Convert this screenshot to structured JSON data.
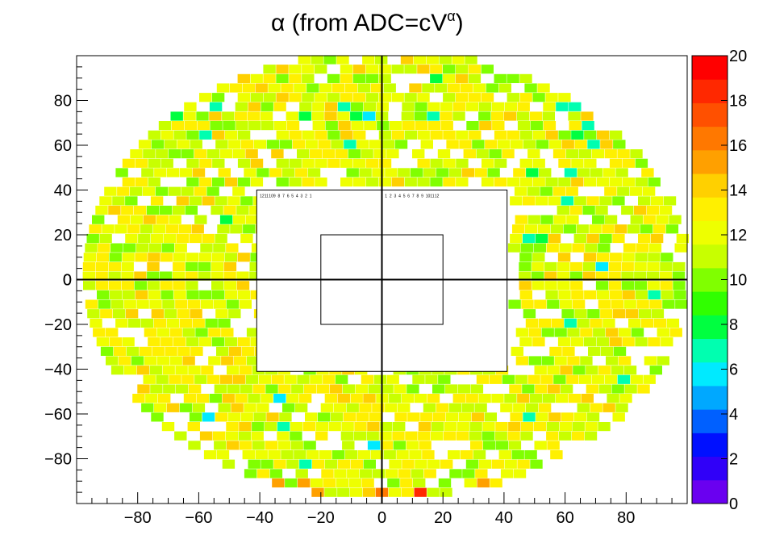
{
  "chart_data": {
    "type": "heatmap",
    "title_base": "α (from ADC=cV",
    "title_sup": "α",
    "title_end": ")",
    "xlim": [
      -100,
      100
    ],
    "ylim": [
      -100,
      100
    ],
    "x_ticks": [
      -80,
      -60,
      -40,
      -20,
      0,
      20,
      40,
      60,
      80
    ],
    "x_tick_labels": [
      "−80",
      "−60",
      "−40",
      "−20",
      "0",
      "20",
      "40",
      "60",
      "80"
    ],
    "y_ticks": [
      80,
      60,
      40,
      20,
      0,
      -20,
      -40,
      -60,
      -80
    ],
    "y_tick_labels": [
      "80",
      "60",
      "40",
      "20",
      "0",
      "−20",
      "−40",
      "−60",
      "−80"
    ],
    "z_range": [
      0,
      20
    ],
    "z_ticks": [
      0,
      2,
      4,
      6,
      8,
      10,
      12,
      14,
      16,
      18,
      20
    ],
    "z_tick_labels": [
      "0",
      "2",
      "4",
      "6",
      "8",
      "10",
      "12",
      "14",
      "16",
      "18",
      "20"
    ],
    "palette": [
      "#6a00f0",
      "#3000f8",
      "#0010ff",
      "#0060ff",
      "#00a8ff",
      "#00eaff",
      "#00ffb0",
      "#00ff40",
      "#30ff00",
      "#80ff00",
      "#c8ff00",
      "#eeff00",
      "#fff000",
      "#ffd000",
      "#ffa000",
      "#ff7800",
      "#ff5000",
      "#ff2800",
      "#ff0000"
    ],
    "grid_note": "values per detector cell; cells shown as colored squares with id labels",
    "large_cells": {
      "row_40": {
        "left_ids": [
          "12",
          "11",
          "10",
          "9",
          "8",
          "7",
          "6",
          "5",
          "4",
          "3",
          "2",
          "1"
        ],
        "right_ids": [
          "1",
          "2",
          "3",
          "4",
          "5",
          "6",
          "7",
          "8",
          "9",
          "10",
          "11",
          "12"
        ]
      }
    }
  }
}
